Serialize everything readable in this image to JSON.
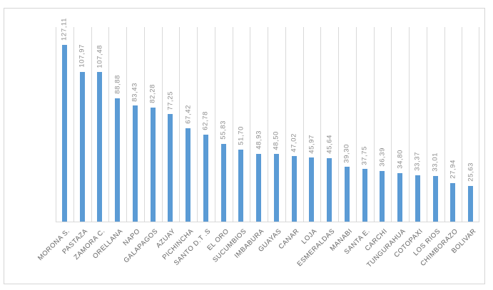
{
  "chart_data": {
    "type": "bar",
    "categories": [
      "MORONA S.",
      "PASTAZA",
      "ZAMORA C.",
      "ORELLANA",
      "NAPO",
      "GALAPAGOS",
      "AZUAY",
      "PICHINCHA",
      "SANTO D.T .S",
      "EL ORO",
      "SUCUMBIOS",
      "IMBABURA",
      "GUAYAS",
      "CANAR",
      "LOJA",
      "ESMERALDAS",
      "MANABI",
      "SANTA E.",
      "CARCHI",
      "TUNGURAHUA",
      "COTOPAXI",
      "LOS RIOS",
      "CHIMBORAZO",
      "BOLIVAR"
    ],
    "values": [
      127.11,
      107.97,
      107.48,
      88.88,
      83.43,
      82.28,
      77.25,
      67.42,
      62.78,
      55.83,
      51.7,
      48.93,
      48.5,
      47.02,
      45.97,
      45.64,
      39.3,
      37.75,
      36.39,
      34.8,
      33.37,
      33.01,
      27.94,
      25.63
    ],
    "value_labels": [
      "127,11",
      "107,97",
      "107,48",
      "88,88",
      "83,43",
      "82,28",
      "77,25",
      "67,42",
      "62,78",
      "55,83",
      "51,70",
      "48,93",
      "48,50",
      "47,02",
      "45,97",
      "45,64",
      "39,30",
      "37,75",
      "36,39",
      "34,80",
      "33,37",
      "33,01",
      "27,94",
      "25,63"
    ],
    "xlabel": "",
    "ylabel": "",
    "ylim": [
      0,
      140
    ],
    "grid": "vertical-category-separators",
    "legend": "none",
    "y_axis_labels_visible": false,
    "value_label_rotation_deg": 90,
    "category_label_rotation_deg": 45
  },
  "colors": {
    "bar": "#5B9BD5",
    "gridline": "#D9D9D9",
    "axis_line": "#D9D9D9",
    "value_label": "#8C8C8C",
    "category_label": "#666666",
    "chart_border": "#D5D5D5",
    "background": "#FFFFFF"
  }
}
